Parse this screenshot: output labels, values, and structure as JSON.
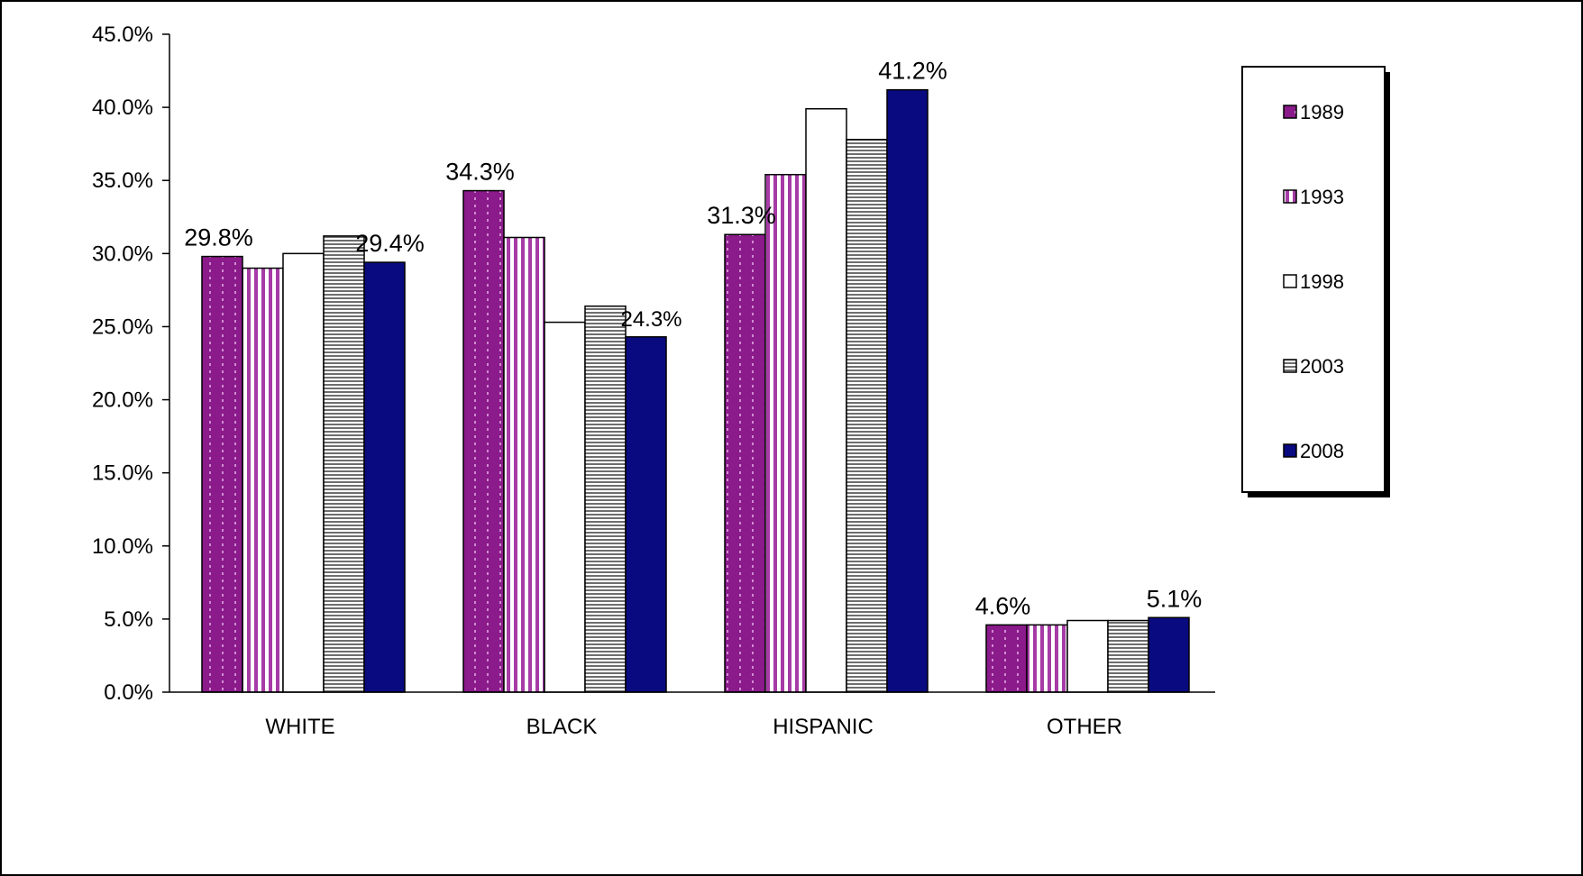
{
  "chart_data": {
    "type": "bar",
    "categories": [
      "WHITE",
      "BLACK",
      "HISPANIC",
      "OTHER"
    ],
    "series": [
      {
        "name": "1989",
        "values": [
          29.8,
          34.3,
          31.3,
          4.6
        ],
        "color": "#8B1A8B",
        "pattern": "dotted-vertical"
      },
      {
        "name": "1993",
        "values": [
          29.0,
          31.1,
          35.4,
          4.6
        ],
        "color": "#B040B0",
        "pattern": "vertical-stripes"
      },
      {
        "name": "1998",
        "values": [
          30.0,
          25.3,
          39.9,
          4.9
        ],
        "color": "#FFFFFF",
        "pattern": "solid"
      },
      {
        "name": "2003",
        "values": [
          31.2,
          26.4,
          37.8,
          4.9
        ],
        "color": "#808080",
        "pattern": "horizontal-stripes"
      },
      {
        "name": "2008",
        "values": [
          29.4,
          24.3,
          41.2,
          5.1
        ],
        "color": "#0A0A80",
        "pattern": "solid"
      }
    ],
    "data_labels": [
      {
        "category": "WHITE",
        "series": "1989",
        "text": "29.8%"
      },
      {
        "category": "WHITE",
        "series": "2008",
        "text": "29.4%"
      },
      {
        "category": "BLACK",
        "series": "1989",
        "text": "34.3%"
      },
      {
        "category": "BLACK",
        "series": "2008",
        "text": "24.3%"
      },
      {
        "category": "HISPANIC",
        "series": "1989",
        "text": "31.3%"
      },
      {
        "category": "HISPANIC",
        "series": "2008",
        "text": "41.2%"
      },
      {
        "category": "OTHER",
        "series": "1989",
        "text": "4.6%"
      },
      {
        "category": "OTHER",
        "series": "2008",
        "text": "5.1%"
      }
    ],
    "y_ticks": [
      "0.0%",
      "5.0%",
      "10.0%",
      "15.0%",
      "20.0%",
      "25.0%",
      "30.0%",
      "35.0%",
      "40.0%",
      "45.0%"
    ],
    "ylim": [
      0,
      45
    ],
    "title": "",
    "xlabel": "",
    "ylabel": "",
    "grid": false,
    "legend_position": "right"
  }
}
